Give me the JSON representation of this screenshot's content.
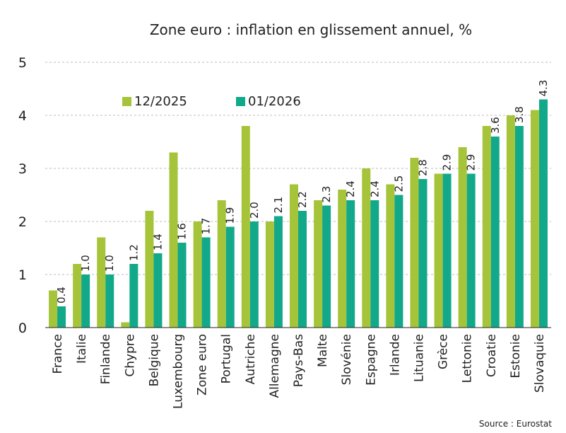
{
  "chart_data": {
    "type": "bar",
    "title": "Zone euro : inflation en glissement annuel, %",
    "source": "Source : Eurostat",
    "categories": [
      "France",
      "Italie",
      "Finlande",
      "Chypre",
      "Belgique",
      "Luxembourg",
      "Zone euro",
      "Portugal",
      "Autriche",
      "Allemagne",
      "Pays-Bas",
      "Malte",
      "Slovénie",
      "Espagne",
      "Irlande",
      "Lituanie",
      "Grèce",
      "Lettonie",
      "Croatie",
      "Estonie",
      "Slovaquie"
    ],
    "series": [
      {
        "name": "12/2025",
        "color": "#a6c43a",
        "values": [
          0.7,
          1.2,
          1.7,
          0.1,
          2.2,
          3.3,
          2.0,
          2.4,
          3.8,
          2.0,
          2.7,
          2.4,
          2.6,
          3.0,
          2.7,
          3.2,
          2.9,
          3.4,
          3.8,
          4.0,
          4.1
        ]
      },
      {
        "name": "01/2026",
        "color": "#12a88a",
        "values": [
          0.4,
          1.0,
          1.0,
          1.2,
          1.4,
          1.6,
          1.7,
          1.9,
          2.0,
          2.1,
          2.2,
          2.3,
          2.4,
          2.4,
          2.5,
          2.8,
          2.9,
          2.9,
          3.6,
          3.8,
          4.3
        ]
      }
    ],
    "data_labels_series": 1,
    "data_labels": [
      "0.4",
      "1.0",
      "1.0",
      "1.2",
      "1.4",
      "1.6",
      "1.7",
      "1.9",
      "2.0",
      "2.1",
      "2.2",
      "2.3",
      "2.4",
      "2.4",
      "2.5",
      "2.8",
      "2.9",
      "2.9",
      "3.6",
      "3.8",
      "4.3"
    ],
    "ylim": [
      0,
      5
    ],
    "yticks": [
      "0",
      "1",
      "2",
      "3",
      "4",
      "5"
    ],
    "grid": true,
    "legend_position": "top-left"
  }
}
